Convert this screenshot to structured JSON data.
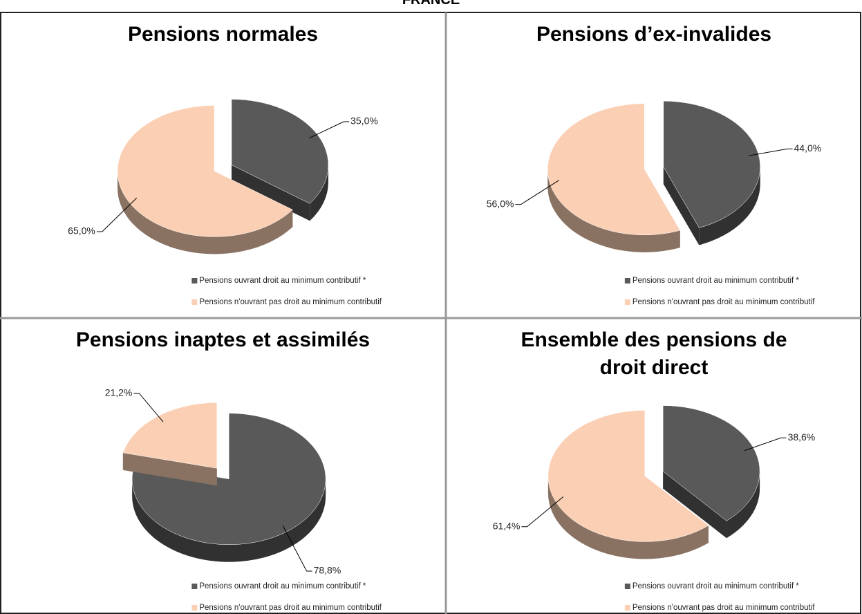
{
  "title": "FRANCE",
  "chart_data": [
    {
      "type": "pie",
      "title": "Pensions normales",
      "categories": [
        "Pensions ouvrant droit au minimum contributif *",
        "Pensions n'ouvrant pas droit au minimum contributif"
      ],
      "values": [
        35.0,
        65.0
      ],
      "value_labels": [
        "35,0%",
        "65,0%"
      ],
      "colors": [
        "#595959",
        "#fbcfb3"
      ]
    },
    {
      "type": "pie",
      "title": "Pensions d’ex-invalides",
      "categories": [
        "Pensions ouvrant droit au minimum contributif *",
        "Pensions n'ouvrant pas droit au minimum contributif"
      ],
      "values": [
        44.0,
        56.0
      ],
      "value_labels": [
        "44,0%",
        "56,0%"
      ],
      "colors": [
        "#595959",
        "#fbcfb3"
      ]
    },
    {
      "type": "pie",
      "title": "Pensions inaptes et assimilés",
      "categories": [
        "Pensions ouvrant droit au minimum contributif *",
        "Pensions n'ouvrant pas droit au minimum contributif"
      ],
      "values": [
        78.8,
        21.2
      ],
      "value_labels": [
        "78,8%",
        "21,2%"
      ],
      "colors": [
        "#595959",
        "#fbcfb3"
      ]
    },
    {
      "type": "pie",
      "title": "Ensemble des pensions de droit direct",
      "categories": [
        "Pensions ouvrant droit au minimum contributif *",
        "Pensions n'ouvrant pas droit au minimum contributif"
      ],
      "values": [
        38.6,
        61.4
      ],
      "value_labels": [
        "38,6%",
        "61,4%"
      ],
      "colors": [
        "#595959",
        "#fbcfb3"
      ]
    }
  ]
}
